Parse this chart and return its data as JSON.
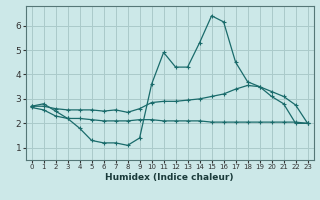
{
  "xlabel": "Humidex (Indice chaleur)",
  "bg_color": "#cce8e8",
  "line_color": "#1a6b6b",
  "grid_color": "#aacaca",
  "xlim": [
    -0.5,
    23.5
  ],
  "ylim": [
    0.5,
    6.8
  ],
  "x": [
    0,
    1,
    2,
    3,
    4,
    5,
    6,
    7,
    8,
    9,
    10,
    11,
    12,
    13,
    14,
    15,
    16,
    17,
    18,
    19,
    20,
    21,
    22,
    23
  ],
  "y_main": [
    2.7,
    2.8,
    2.5,
    2.2,
    1.8,
    1.3,
    1.2,
    1.2,
    1.1,
    1.4,
    3.6,
    4.9,
    4.3,
    4.3,
    5.3,
    6.4,
    6.15,
    4.5,
    3.7,
    3.5,
    3.1,
    2.8,
    2.0,
    2.0
  ],
  "y_upper": [
    2.7,
    2.7,
    2.6,
    2.55,
    2.55,
    2.55,
    2.5,
    2.55,
    2.45,
    2.6,
    2.85,
    2.9,
    2.9,
    2.95,
    3.0,
    3.1,
    3.2,
    3.4,
    3.55,
    3.5,
    3.3,
    3.1,
    2.75,
    2.0
  ],
  "y_lower": [
    2.65,
    2.55,
    2.3,
    2.2,
    2.2,
    2.15,
    2.1,
    2.1,
    2.1,
    2.15,
    2.15,
    2.1,
    2.1,
    2.1,
    2.1,
    2.05,
    2.05,
    2.05,
    2.05,
    2.05,
    2.05,
    2.05,
    2.05,
    2.0
  ],
  "xticks": [
    0,
    1,
    2,
    3,
    4,
    5,
    6,
    7,
    8,
    9,
    10,
    11,
    12,
    13,
    14,
    15,
    16,
    17,
    18,
    19,
    20,
    21,
    22,
    23
  ],
  "yticks": [
    1,
    2,
    3,
    4,
    5,
    6
  ]
}
